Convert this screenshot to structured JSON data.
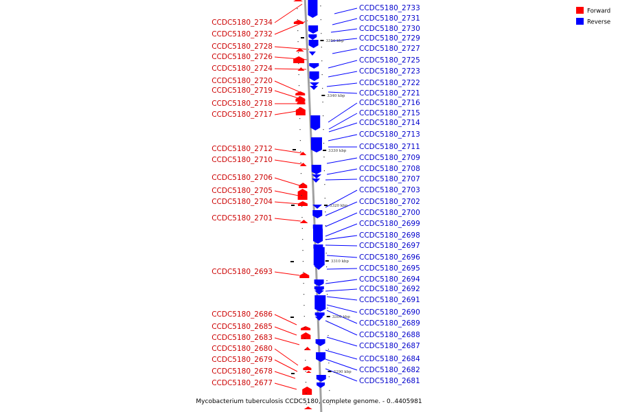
{
  "caption": "Mycobacterium tuberculosis CCDC5180, complete genome. - 0..4405981",
  "legend": [
    {
      "label": "Forward",
      "color": "#ff0000"
    },
    {
      "label": "Reverse",
      "color": "#0000ff"
    }
  ],
  "colors": {
    "forward": "#ff0000",
    "reverse": "#0000ff",
    "backbone": "#a0a0a0"
  },
  "ticks": [
    "3350 kbp",
    "3340 kbp",
    "3330 kbp",
    "3320 kbp",
    "3310 kbp",
    "3300 kbp",
    "3290 kbp"
  ],
  "forward_genes": [
    "CCDC5180_2734",
    "CCDC5180_2732",
    "CCDC5180_2728",
    "CCDC5180_2726",
    "CCDC5180_2724",
    "CCDC5180_2720",
    "CCDC5180_2719",
    "CCDC5180_2718",
    "CCDC5180_2717",
    "CCDC5180_2712",
    "CCDC5180_2710",
    "CCDC5180_2706",
    "CCDC5180_2705",
    "CCDC5180_2704",
    "CCDC5180_2701",
    "CCDC5180_2693",
    "CCDC5180_2686",
    "CCDC5180_2685",
    "CCDC5180_2683",
    "CCDC5180_2680",
    "CCDC5180_2679",
    "CCDC5180_2678",
    "CCDC5180_2677"
  ],
  "reverse_genes": [
    "CCDC5180_2733",
    "CCDC5180_2731",
    "CCDC5180_2730",
    "CCDC5180_2729",
    "CCDC5180_2727",
    "CCDC5180_2725",
    "CCDC5180_2723",
    "CCDC5180_2722",
    "CCDC5180_2721",
    "CCDC5180_2716",
    "CCDC5180_2715",
    "CCDC5180_2714",
    "CCDC5180_2713",
    "CCDC5180_2711",
    "CCDC5180_2709",
    "CCDC5180_2708",
    "CCDC5180_2707",
    "CCDC5180_2703",
    "CCDC5180_2702",
    "CCDC5180_2700",
    "CCDC5180_2699",
    "CCDC5180_2698",
    "CCDC5180_2697",
    "CCDC5180_2696",
    "CCDC5180_2695",
    "CCDC5180_2694",
    "CCDC5180_2692",
    "CCDC5180_2691",
    "CCDC5180_2690",
    "CCDC5180_2689",
    "CCDC5180_2688",
    "CCDC5180_2687",
    "CCDC5180_2684",
    "CCDC5180_2682",
    "CCDC5180_2681"
  ]
}
